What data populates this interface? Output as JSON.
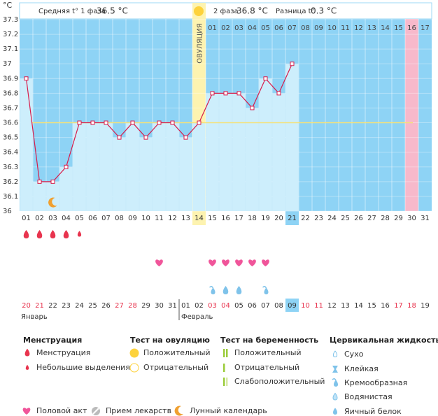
{
  "header": {
    "phase1_label": "Средняя t° 1 фаза",
    "phase1_value": "36.5 °C",
    "phase2_label": "2 фаза",
    "phase2_value": "36.8 °C",
    "diff_label": "Разница t°",
    "diff_value": "0.3 °C"
  },
  "chart_data": {
    "type": "line",
    "y_unit": "°C",
    "ovulation_label": "ОВУЛЯЦИЯ",
    "categories": [
      "01",
      "02",
      "03",
      "04",
      "05",
      "06",
      "07",
      "08",
      "09",
      "10",
      "11",
      "12",
      "13",
      "14",
      "15",
      "16",
      "17",
      "18",
      "19",
      "20",
      "21",
      "22",
      "23",
      "24",
      "25",
      "26",
      "27",
      "28",
      "29",
      "30",
      "31"
    ],
    "values": [
      36.9,
      36.2,
      36.2,
      36.3,
      36.6,
      36.6,
      36.6,
      36.5,
      36.6,
      36.5,
      36.6,
      36.6,
      36.5,
      36.6,
      36.8,
      36.8,
      36.8,
      36.7,
      36.9,
      36.8,
      37.0,
      null,
      null,
      null,
      null,
      null,
      null,
      null,
      null,
      null,
      null
    ],
    "color": "#d81b4a",
    "cover_line": 36.6,
    "post_ovulation_days": [
      "01",
      "02",
      "03",
      "04",
      "05",
      "06",
      "07",
      "08",
      "09",
      "10",
      "11",
      "12",
      "13",
      "14",
      "15",
      "16",
      "17"
    ],
    "ovulation_index": 13,
    "today_index": 20,
    "pink_index": 29,
    "ylim": [
      36,
      37.3
    ],
    "yticks": [
      36,
      36.1,
      36.2,
      36.3,
      36.4,
      36.5,
      36.6,
      36.7,
      36.8,
      36.9,
      37,
      37.1,
      37.2,
      37.3
    ],
    "grid": true,
    "dates": [
      "20",
      "21",
      "22",
      "23",
      "24",
      "25",
      "26",
      "27",
      "28",
      "29",
      "30",
      "31",
      "01",
      "02",
      "03",
      "04",
      "05",
      "06",
      "07",
      "08",
      "09",
      "10",
      "11",
      "12",
      "13",
      "14",
      "15",
      "16",
      "17",
      "18",
      "19"
    ],
    "weekend_indices": [
      0,
      1,
      7,
      8,
      14,
      15,
      21,
      22,
      28,
      29
    ],
    "months": [
      "Январь",
      "Февраль"
    ],
    "month_start_index": 12,
    "menstruation_days": [
      0,
      1,
      2,
      3
    ],
    "spotting_days": [
      4
    ],
    "intercourse_days": [
      10,
      14,
      15,
      16,
      17,
      18
    ],
    "creamy_days": [
      14,
      18
    ],
    "egg_white_days": [
      15,
      16
    ],
    "moon_days": [
      2
    ]
  },
  "legend": {
    "sections": [
      {
        "title": "Менструация",
        "items": [
          "Менструация",
          "Небольшие выделения"
        ]
      },
      {
        "title": "Тест на овуляцию",
        "items": [
          "Положительный",
          "Отрицательный"
        ]
      },
      {
        "title": "Тест на беременность",
        "items": [
          "Положительный",
          "Отрицательный",
          "Слабоположительный"
        ]
      },
      {
        "title": "Цервикальная жидкость",
        "items": [
          "Сухо",
          "Клейкая",
          "Кремообразная",
          "Водянистая",
          "Яичный белок"
        ]
      }
    ],
    "bottom": [
      "Половой акт",
      "Прием лекарств",
      "Лунный календарь"
    ]
  }
}
